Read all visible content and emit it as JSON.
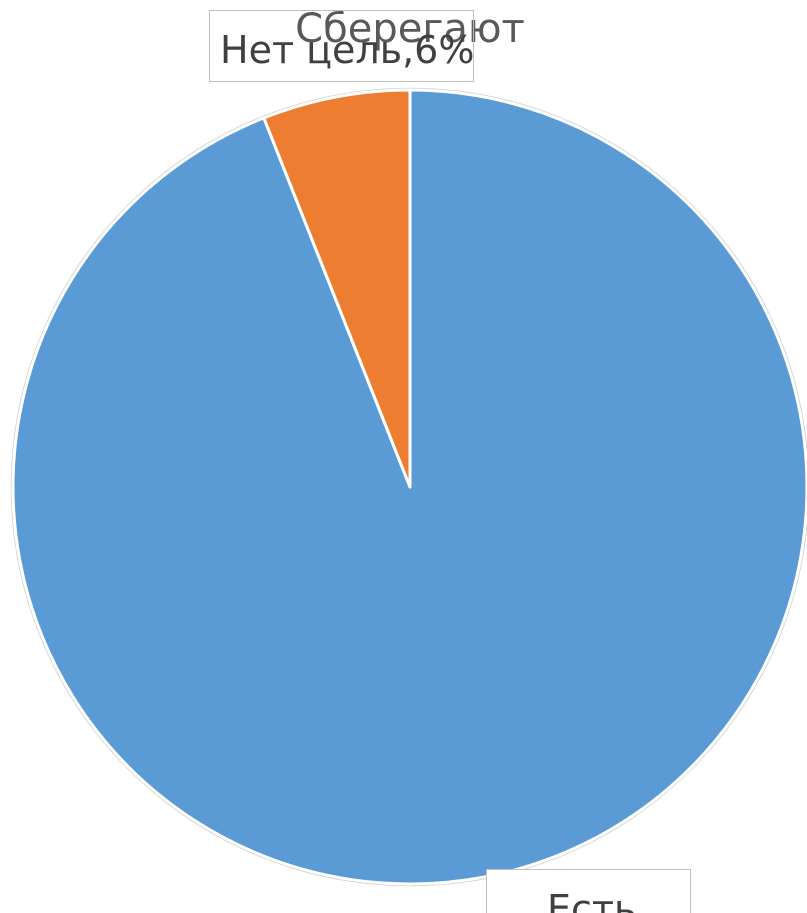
{
  "chart_data": {
    "type": "pie",
    "title": "Сберегают",
    "categories": [
      "Есть цель",
      "Нет цель"
    ],
    "values": [
      94,
      6
    ],
    "colors": [
      "#5b9bd5",
      "#ed7d31"
    ],
    "data_labels": [
      "Есть",
      "Нет цель,6%"
    ],
    "start_angle_deg": 0,
    "direction": "clockwise",
    "legend": "none"
  }
}
